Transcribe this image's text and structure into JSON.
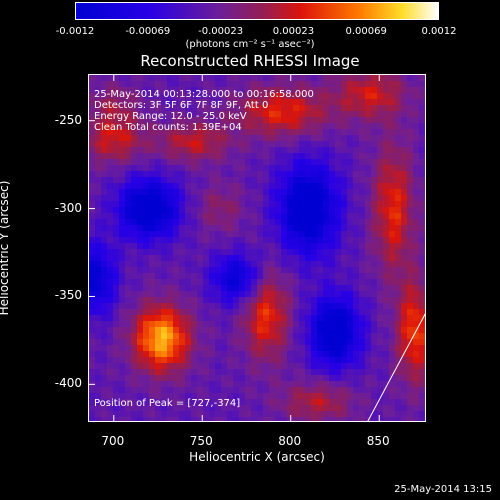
{
  "chart_data": {
    "type": "heatmap",
    "title": "Reconstructed RHESSI Image",
    "xlabel": "Heliocentric X (arcsec)",
    "ylabel": "Heliocentric Y (arcsec)",
    "xlim": [
      686,
      877
    ],
    "ylim": [
      -422,
      -224
    ],
    "xticks": [
      "700",
      "750",
      "800",
      "850"
    ],
    "xtick_values": [
      700,
      750,
      800,
      850
    ],
    "yticks": [
      "-250",
      "-300",
      "-350",
      "-400"
    ],
    "ytick_values": [
      -250,
      -300,
      -350,
      -400
    ],
    "colorbar": {
      "min": -0.0012,
      "max": 0.0012,
      "tick_labels": [
        "-0.0012",
        "-0.00069",
        "-0.00023",
        "0.00023",
        "0.00069",
        "0.0012"
      ],
      "units_label": "(photons cm⁻² s⁻¹ asec⁻²)"
    },
    "annotations": [
      "25-May-2014 00:13:28.000 to 00:16:58.000",
      "Detectors: 3F 5F 6F 7F 8F 9F, Att 0",
      "Energy Range: 12.0 - 25.0 keV",
      "Clean    Total counts: 1.39E+04"
    ],
    "peak_label": "Position of Peak = [727,-374]",
    "peak_position": [
      727,
      -374
    ],
    "sources": [
      {
        "x": 727,
        "y": -374,
        "value": 0.0012,
        "sx": 11,
        "sy": 13
      },
      {
        "x": 786,
        "y": -360,
        "value": 0.00075,
        "sx": 9,
        "sy": 18
      },
      {
        "x": 700,
        "y": -260,
        "value": 0.0006,
        "sx": 12,
        "sy": 10
      },
      {
        "x": 745,
        "y": -262,
        "value": 0.00055,
        "sx": 14,
        "sy": 8
      },
      {
        "x": 795,
        "y": -245,
        "value": 0.0007,
        "sx": 18,
        "sy": 10
      },
      {
        "x": 845,
        "y": -235,
        "value": 0.0006,
        "sx": 14,
        "sy": 10
      },
      {
        "x": 858,
        "y": -300,
        "value": 0.0007,
        "sx": 8,
        "sy": 25
      },
      {
        "x": 870,
        "y": -370,
        "value": 0.0008,
        "sx": 7,
        "sy": 20
      },
      {
        "x": 815,
        "y": -410,
        "value": 0.0005,
        "sx": 14,
        "sy": 8
      },
      {
        "x": 760,
        "y": -300,
        "value": 0.0003,
        "sx": 10,
        "sy": 10
      },
      {
        "x": 700,
        "y": -240,
        "value": 0.0003,
        "sx": 10,
        "sy": 8
      },
      {
        "x": 720,
        "y": -300,
        "value": -0.0011,
        "sx": 12,
        "sy": 12
      },
      {
        "x": 810,
        "y": -300,
        "value": -0.0011,
        "sx": 12,
        "sy": 18
      },
      {
        "x": 825,
        "y": -370,
        "value": -0.0011,
        "sx": 10,
        "sy": 14
      },
      {
        "x": 770,
        "y": -340,
        "value": -0.0008,
        "sx": 10,
        "sy": 10
      },
      {
        "x": 690,
        "y": -340,
        "value": -0.0008,
        "sx": 8,
        "sy": 14
      }
    ],
    "limb_line": [
      [
        843,
        -422
      ],
      [
        877,
        -358
      ]
    ]
  },
  "footer_date": "25-May-2014 13:15"
}
